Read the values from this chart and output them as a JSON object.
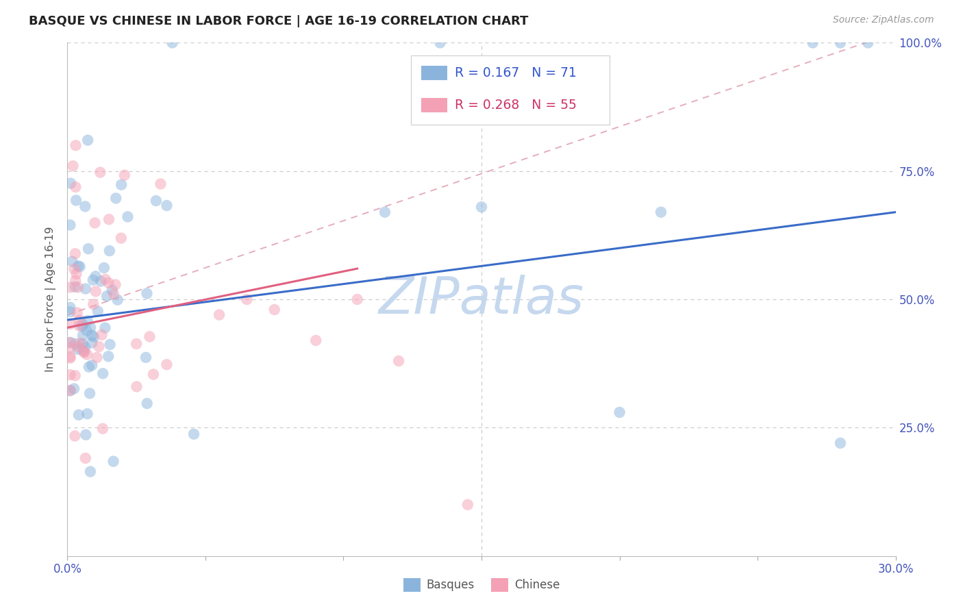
{
  "title": "BASQUE VS CHINESE IN LABOR FORCE | AGE 16-19 CORRELATION CHART",
  "source": "Source: ZipAtlas.com",
  "ylabel": "In Labor Force | Age 16-19",
  "xlim": [
    0.0,
    0.3
  ],
  "ylim": [
    0.0,
    1.0
  ],
  "ytick_positions": [
    0.0,
    0.25,
    0.5,
    0.75,
    1.0
  ],
  "ytick_labels": [
    "",
    "25.0%",
    "50.0%",
    "75.0%",
    "100.0%"
  ],
  "xtick_positions": [
    0.0,
    0.05,
    0.1,
    0.15,
    0.2,
    0.25,
    0.3
  ],
  "xtick_labels": [
    "0.0%",
    "",
    "",
    "",
    "",
    "",
    "30.0%"
  ],
  "basque_R": 0.167,
  "basque_N": 71,
  "chinese_R": 0.268,
  "chinese_N": 55,
  "basque_color": "#8AB4DC",
  "chinese_color": "#F4A0B5",
  "basque_line_color": "#3A6CC8",
  "chinese_line_color": "#E06080",
  "diagonal_color": "#E0A0B0",
  "watermark": "ZIPatlas",
  "watermark_color": "#C5D8EE",
  "grid_color": "#CCCCCC",
  "background_color": "#FFFFFF",
  "basque_line_x0": 0.0,
  "basque_line_y0": 0.46,
  "basque_line_x1": 0.3,
  "basque_line_y1": 0.67,
  "chinese_line_x0": 0.0,
  "chinese_line_y0": 0.445,
  "chinese_line_x1": 0.105,
  "chinese_line_y1": 0.56,
  "diag_line_x0": 0.0,
  "diag_line_y0": 0.47,
  "diag_line_x1": 0.3,
  "diag_line_y1": 1.02
}
